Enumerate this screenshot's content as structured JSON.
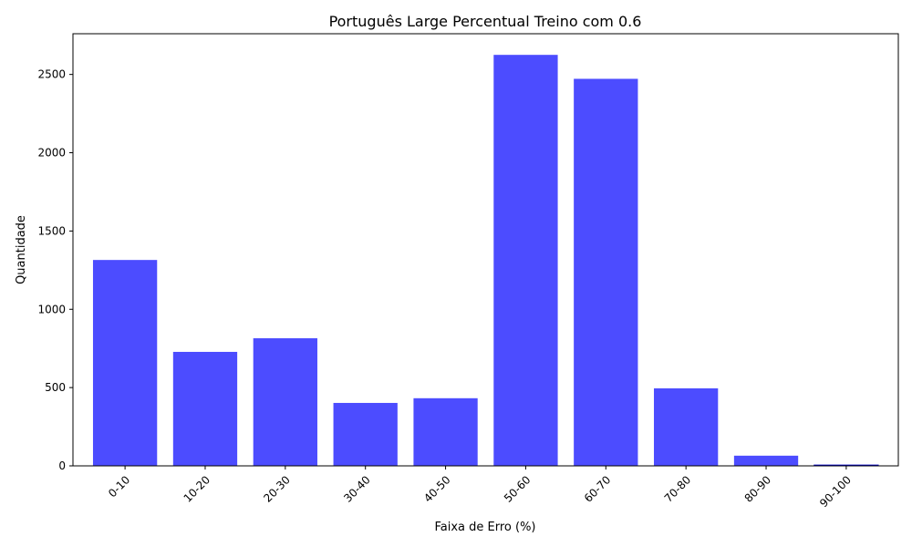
{
  "chart_data": {
    "type": "bar",
    "title": "Português Large Percentual Treino com 0.6",
    "xlabel": "Faixa de Erro (%)",
    "ylabel": "Quantidade",
    "categories": [
      "0-10",
      "10-20",
      "20-30",
      "30-40",
      "40-50",
      "50-60",
      "60-70",
      "70-80",
      "80-90",
      "90-100"
    ],
    "values": [
      1315,
      728,
      815,
      402,
      432,
      2625,
      2472,
      495,
      65,
      5
    ],
    "ylim": [
      0,
      2760
    ],
    "yticks": [
      0,
      500,
      1000,
      1500,
      2000,
      2500
    ],
    "bar_color": "#4c4cff",
    "bar_edge_color": "#0000cc",
    "grid": false,
    "legend": "none"
  }
}
